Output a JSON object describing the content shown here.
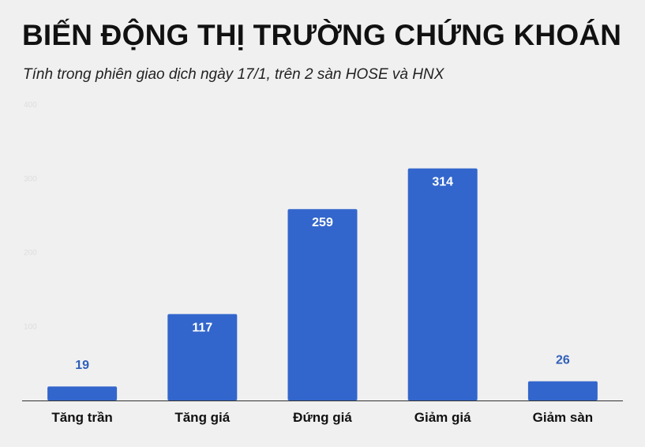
{
  "title": "BIẾN ĐỘNG THỊ TRƯỜNG CHỨNG KHOÁN",
  "subtitle": "Tính trong phiên giao dịch ngày 17/1, trên 2 sàn HOSE và HNX",
  "colors": {
    "bar": "#3366cc",
    "background": "#f0f0f0",
    "label_outside": "#2f5fb8"
  },
  "chart_data": {
    "type": "bar",
    "categories": [
      "Tăng trần",
      "Tăng giá",
      "Đứng giá",
      "Giảm giá",
      "Giảm sàn"
    ],
    "values": [
      19,
      117,
      259,
      314,
      26
    ],
    "ylim": [
      0,
      400
    ],
    "yticks": [
      100,
      200,
      300,
      400
    ],
    "ytick_labels": [
      "100",
      "200",
      "300",
      "400"
    ],
    "grid": false,
    "data_labels": true
  }
}
